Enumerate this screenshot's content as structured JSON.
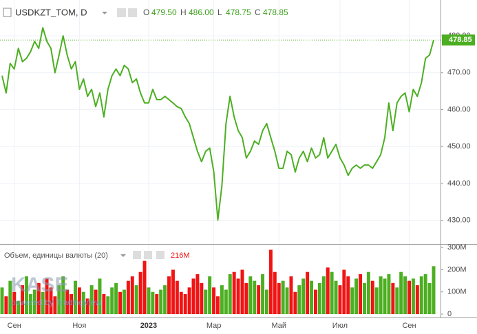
{
  "chart_data": {
    "type": "line",
    "symbol": "USDKZT_TOM, D",
    "ohlc": [
      {
        "label": "O",
        "value": "479.50"
      },
      {
        "label": "H",
        "value": "486.00"
      },
      {
        "label": "L",
        "value": "478.75"
      },
      {
        "label": "C",
        "value": "478.85"
      }
    ],
    "watermark": "KASE",
    "watermark_sub": "powered by TradingView",
    "categories": [
      null,
      null,
      null,
      "Сен",
      null,
      null,
      null,
      null,
      null,
      null,
      null,
      null,
      null,
      null,
      null,
      null,
      null,
      null,
      null,
      "Ноя",
      null,
      null,
      null,
      null,
      null,
      null,
      null,
      null,
      null,
      null,
      null,
      null,
      null,
      null,
      null,
      null,
      "2023",
      null,
      null,
      null,
      null,
      null,
      null,
      null,
      null,
      null,
      null,
      null,
      null,
      null,
      null,
      null,
      "Мар",
      null,
      null,
      null,
      null,
      null,
      null,
      null,
      null,
      null,
      null,
      null,
      null,
      null,
      null,
      null,
      "Май",
      null,
      null,
      null,
      null,
      null,
      null,
      null,
      null,
      null,
      null,
      null,
      null,
      null,
      null,
      "Июл",
      null,
      null,
      null,
      null,
      null,
      null,
      null,
      null,
      null,
      null,
      null,
      null,
      null,
      null,
      null,
      null,
      "Сен",
      null,
      null,
      null,
      null,
      null,
      null
    ],
    "series": [
      {
        "name": "USDKZT_TOM",
        "color": "#4caf22",
        "values": [
          469.2,
          464.5,
          472.5,
          471,
          476.6,
          473,
          473.9,
          475.7,
          478.5,
          476.6,
          482.2,
          478.5,
          476.6,
          470,
          474.8,
          480,
          474.8,
          471,
          473,
          465.5,
          468.3,
          463.6,
          465.5,
          460.8,
          464.5,
          458,
          465.5,
          469.2,
          471,
          469.2,
          472,
          471,
          467.3,
          468.3,
          464.5,
          461.8,
          461.8,
          465.5,
          462.7,
          462.7,
          463.6,
          462.7,
          461.8,
          460.8,
          460.3,
          458,
          456.2,
          452.4,
          448.7,
          445.9,
          448.7,
          449.6,
          443.1,
          430.1,
          439.4,
          456.2,
          463.6,
          458,
          454.3,
          452.4,
          446.9,
          448.7,
          451.5,
          450.6,
          454.3,
          456.2,
          452.4,
          448.7,
          444.1,
          444.1,
          448.7,
          447.8,
          443.1,
          446.9,
          448.7,
          445.9,
          449.6,
          446.9,
          447.8,
          452.4,
          446.9,
          448.7,
          450.6,
          446.9,
          445,
          442.2,
          444.1,
          445,
          444.1,
          445,
          445,
          444.1,
          445.9,
          447.8,
          452.4,
          461.8,
          454.3,
          461.8,
          463.6,
          464.5,
          459.4,
          465.5,
          463.6,
          467.3,
          473.9,
          474.8,
          478.85
        ]
      }
    ],
    "last_value_label": "478.85",
    "ylim": [
      423.6,
      489.7
    ],
    "yticks": [
      {
        "value": 430,
        "label": "430.00"
      },
      {
        "value": 440,
        "label": "440.00"
      },
      {
        "value": 450,
        "label": "450.00"
      },
      {
        "value": 460,
        "label": "460.00"
      },
      {
        "value": 470,
        "label": "470.00"
      },
      {
        "value": 480,
        "label": "480.00"
      }
    ],
    "grid": true,
    "volume": {
      "title": "Объем, единицы валюты (20)",
      "up_color": "#4caf22",
      "down_color": "#f01414",
      "values": [
        120,
        80,
        150,
        100,
        60,
        130,
        170,
        90,
        110,
        140,
        100,
        160,
        120,
        80,
        130,
        170,
        110,
        90,
        150,
        120,
        100,
        70,
        130,
        110,
        160,
        90,
        80,
        120,
        140,
        100,
        110,
        150,
        170,
        130,
        190,
        240,
        120,
        100,
        90,
        110,
        130,
        170,
        200,
        150,
        100,
        90,
        120,
        160,
        180,
        140,
        110,
        170,
        120,
        80,
        130,
        110,
        180,
        190,
        160,
        200,
        140,
        170,
        150,
        130,
        180,
        110,
        290,
        190,
        140,
        150,
        120,
        170,
        100,
        130,
        160,
        190,
        150,
        110,
        140,
        170,
        210,
        190,
        150,
        130,
        200,
        170,
        120,
        160,
        180,
        140,
        190,
        150,
        120,
        170,
        160,
        180,
        140,
        120,
        190,
        170,
        150,
        160,
        130,
        170,
        180,
        140,
        216
      ],
      "last_value_label": "216M",
      "ylim": [
        0,
        310
      ],
      "yticks": [
        0,
        {
          "value": 100,
          "label": "100M"
        },
        {
          "value": 200,
          "label": "200M"
        },
        {
          "value": 300,
          "label": "300M"
        }
      ]
    }
  }
}
